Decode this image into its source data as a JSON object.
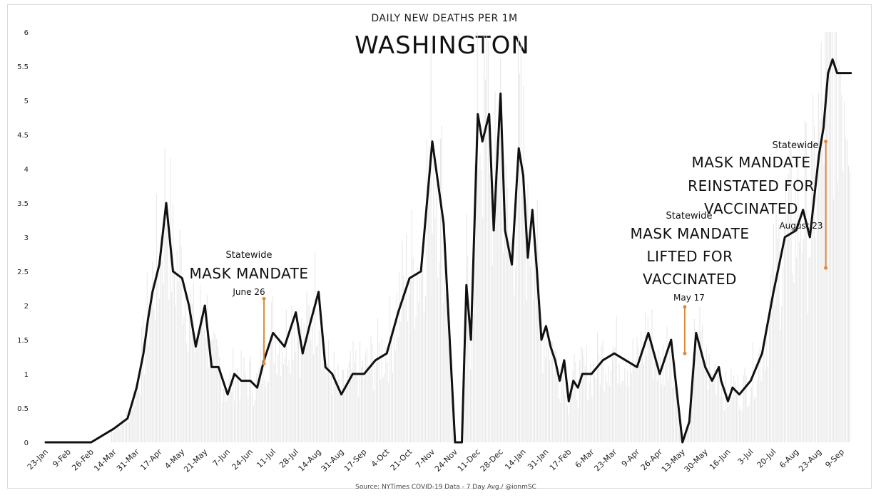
{
  "chart_data": {
    "type": "line",
    "subtitle": "DAILY NEW DEATHS PER 1M",
    "title": "WASHINGTON",
    "source": "Source: NYTimes COVID-19 Data - 7 Day Avg./ @ionmSC",
    "ylim": [
      0,
      6
    ],
    "yticks": [
      "0",
      "0.5",
      "1",
      "1.5",
      "2",
      "2.5",
      "3",
      "3.5",
      "4",
      "4.5",
      "5",
      "5.5",
      "6"
    ],
    "xticks": [
      "23-Jan",
      "9-Feb",
      "26-Feb",
      "14-Mar",
      "31-Mar",
      "17-Apr",
      "4-May",
      "21-May",
      "7-Jun",
      "24-Jun",
      "11-Jul",
      "28-Jul",
      "14-Aug",
      "31-Aug",
      "17-Sep",
      "4-Oct",
      "21-Oct",
      "7-Nov",
      "24-Nov",
      "11-Dec",
      "28-Dec",
      "14-Jan",
      "31-Jan",
      "17-Feb",
      "6-Mar",
      "23-Mar",
      "9-Apr",
      "26-Apr",
      "13-May",
      "30-May",
      "16-Jun",
      "3-Jul",
      "20-Jul",
      "6-Aug",
      "23-Aug",
      "9-Sep"
    ],
    "series": [
      {
        "x": [
          0,
          1,
          2,
          3,
          3.6,
          4,
          4.3,
          4.5,
          4.7,
          5,
          5.3,
          5.6,
          6,
          6.3,
          6.6,
          7,
          7.3,
          7.6,
          8,
          8.3,
          8.6,
          9,
          9.3,
          9.6,
          10,
          10.5,
          11,
          11.3,
          11.6,
          12,
          12.3,
          12.6,
          13,
          13.5,
          14,
          14.5,
          15,
          15.5,
          16,
          16.5,
          17,
          17.5,
          18,
          18.3,
          18.5,
          18.7,
          19,
          19.2,
          19.5,
          19.7,
          20,
          20.2,
          20.5,
          20.8,
          21,
          21.2,
          21.4,
          21.6,
          21.8,
          22,
          22.2,
          22.4,
          22.6,
          22.8,
          23,
          23.2,
          23.4,
          23.6,
          24,
          24.5,
          25,
          25.5,
          26,
          26.5,
          27,
          27.5,
          28,
          28.3,
          28.6,
          29,
          29.3,
          29.6,
          29.7,
          30,
          30.2,
          30.5,
          31,
          31.5,
          32,
          32.5,
          33,
          33.3,
          33.6,
          34,
          34.2,
          34.4,
          34.6,
          34.8,
          35,
          35.2,
          35.4
        ],
        "values": [
          0,
          0,
          0,
          0.2,
          0.35,
          0.8,
          1.3,
          1.8,
          2.2,
          2.6,
          3.5,
          2.5,
          2.4,
          2.0,
          1.4,
          2.0,
          1.1,
          1.1,
          0.7,
          1.0,
          0.9,
          0.9,
          0.8,
          1.2,
          1.6,
          1.4,
          1.9,
          1.3,
          1.7,
          2.2,
          1.1,
          1.0,
          0.7,
          1.0,
          1.0,
          1.2,
          1.3,
          1.9,
          2.4,
          2.5,
          4.4,
          3.2,
          0,
          0,
          2.3,
          1.5,
          4.8,
          4.4,
          4.8,
          3.1,
          5.1,
          3.1,
          2.6,
          4.3,
          3.9,
          2.7,
          3.4,
          2.5,
          1.5,
          1.7,
          1.4,
          1.2,
          0.9,
          1.2,
          0.6,
          0.9,
          0.8,
          1.0,
          1.0,
          1.2,
          1.3,
          1.2,
          1.1,
          1.6,
          1.0,
          1.5,
          0,
          0.3,
          1.6,
          1.1,
          0.9,
          1.1,
          0.9,
          0.6,
          0.8,
          0.7,
          0.9,
          1.3,
          2.2,
          3.0,
          3.1,
          3.4,
          3.0,
          4.2,
          4.6,
          5.4,
          5.6,
          5.4,
          5.4,
          5.4,
          5.4
        ]
      }
    ],
    "annotations": [
      {
        "top": "Statewide",
        "lines": [
          "MASK MANDATE"
        ],
        "date": "June 26",
        "x": 9.6,
        "y_from": 1.15,
        "y_to": 2.1
      },
      {
        "top": "Statewide",
        "lines": [
          "MASK MANDATE",
          "LIFTED FOR",
          "VACCINATED"
        ],
        "date": "May 17",
        "x": 28.1,
        "y_from": 1.3,
        "y_to": 1.98
      },
      {
        "top": "Statewide",
        "lines": [
          "MASK MANDATE",
          "REINSTATED FOR",
          "VACCINATED"
        ],
        "date": "August 23",
        "x": 34.3,
        "y_from": 2.55,
        "y_to": 4.4
      }
    ],
    "line_color": "#111111",
    "marker_color": "#e08a3c",
    "bar_color": "#e6e6e6",
    "grid": false,
    "legend": false
  }
}
